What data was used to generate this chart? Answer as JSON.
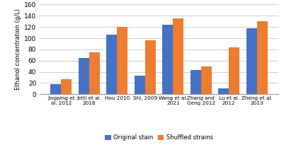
{
  "categories": [
    "Jingping et\nal. 2012",
    "Jetti et al.\n2018",
    "Hou 2010",
    "Shi, 2009",
    "Wang et al.\n2021",
    "Zhang and\nGeng 2012",
    "Lu et al.\n2012",
    "Zheng et al.\n2013"
  ],
  "original_strain": [
    18,
    65,
    106,
    33,
    124,
    43,
    11,
    118
  ],
  "shuffled_strains": [
    27,
    75,
    120,
    96,
    135,
    49,
    83,
    130
  ],
  "original_color": "#4472C4",
  "shuffled_color": "#ED7D31",
  "ylabel": "Ethanol concentration (g/L)",
  "ylim": [
    0,
    160
  ],
  "yticks": [
    0,
    20,
    40,
    60,
    80,
    100,
    120,
    140,
    160
  ],
  "legend_original": "Original stain",
  "legend_shuffled": "Shuffled strains",
  "bar_width": 0.38,
  "grid_color": "#C8C8C8",
  "background_color": "#FFFFFF"
}
